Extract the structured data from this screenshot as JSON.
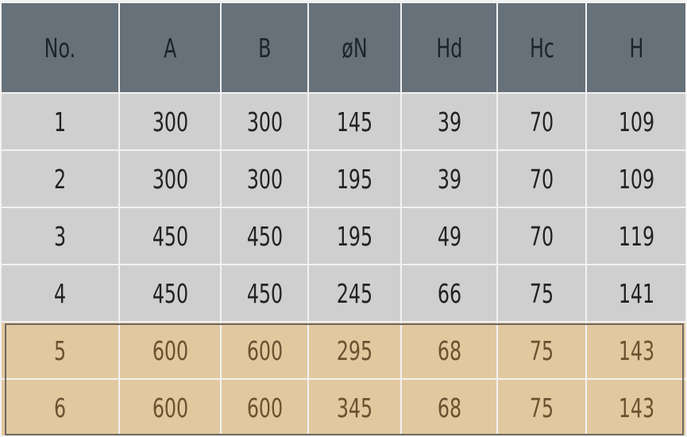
{
  "table": {
    "headers": [
      "No.",
      "A",
      "B",
      "øN",
      "Hd",
      "Hc",
      "H"
    ],
    "rows": [
      [
        "1",
        "300",
        "300",
        "145",
        "39",
        "70",
        "109"
      ],
      [
        "2",
        "300",
        "300",
        "195",
        "39",
        "70",
        "109"
      ],
      [
        "3",
        "450",
        "450",
        "195",
        "49",
        "70",
        "119"
      ],
      [
        "4",
        "450",
        "450",
        "245",
        "66",
        "75",
        "141"
      ],
      [
        "5",
        "600",
        "600",
        "295",
        "68",
        "75",
        "143"
      ],
      [
        "6",
        "600",
        "600",
        "345",
        "68",
        "75",
        "143"
      ]
    ],
    "highlighted_rows": [
      "5",
      "6"
    ],
    "colors": {
      "header": "#67717a",
      "cell": "#cfcfcf",
      "highlight": "#e2c89f",
      "highlight_text": "#6b5230"
    }
  }
}
